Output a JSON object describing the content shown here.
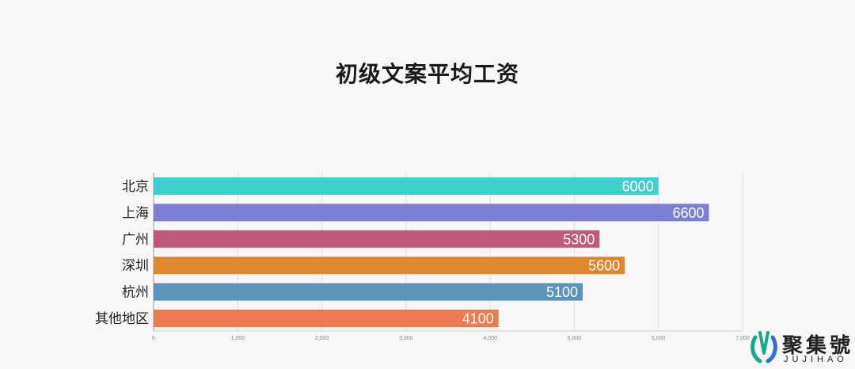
{
  "chart_data": {
    "type": "bar",
    "orientation": "horizontal",
    "title": "初级文案平均工资",
    "categories": [
      "北京",
      "上海",
      "广州",
      "深圳",
      "杭州",
      "其他地区"
    ],
    "values": [
      6000,
      6600,
      5300,
      5600,
      5100,
      4100
    ],
    "value_labels": [
      "6000",
      "6600",
      "5300",
      "5600",
      "5100",
      "4100"
    ],
    "colors": [
      "#3fcfcf",
      "#7c7fd6",
      "#bf5a7e",
      "#e0862f",
      "#5b93b9",
      "#ee7a4f"
    ],
    "xlim": [
      0,
      7000
    ],
    "x_ticks": [
      0,
      1000,
      2000,
      3000,
      4000,
      5000,
      6000,
      7000
    ],
    "x_tick_labels": [
      "0",
      "1,000",
      "2,000",
      "3,000",
      "4,000",
      "5,000",
      "6,000",
      "7,000"
    ],
    "grid": true,
    "legend": "none"
  },
  "watermark": {
    "name_cn": "聚集號",
    "name_en": "JUJIHAO",
    "colors": [
      "#19a88a",
      "#2e6fd8"
    ]
  }
}
